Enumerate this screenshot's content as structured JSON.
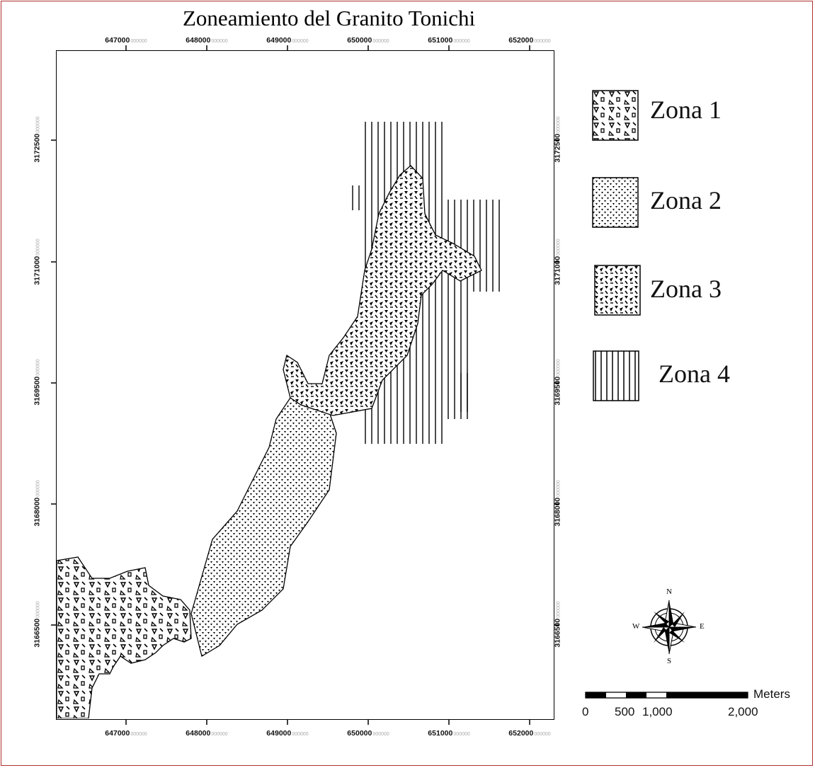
{
  "map": {
    "title": "Zoneamiento del Granito Tonichi",
    "x_ticks": [
      {
        "label": "647000",
        "suffix": "000000"
      },
      {
        "label": "648000",
        "suffix": "000000"
      },
      {
        "label": "649000",
        "suffix": "000000"
      },
      {
        "label": "650000",
        "suffix": "000000"
      },
      {
        "label": "651000",
        "suffix": "000000"
      },
      {
        "label": "652000",
        "suffix": "000000"
      }
    ],
    "y_ticks": [
      {
        "label": "3172500",
        "suffix": "000000"
      },
      {
        "label": "3171000",
        "suffix": "000000"
      },
      {
        "label": "3169500",
        "suffix": "000000"
      },
      {
        "label": "3168000",
        "suffix": "000000"
      },
      {
        "label": "3166500",
        "suffix": "000000"
      }
    ]
  },
  "legend": {
    "items": [
      {
        "label": "Zona 1",
        "pattern": "triangles-sparse"
      },
      {
        "label": "Zona 2",
        "pattern": "dots-dense"
      },
      {
        "label": "Zona 3",
        "pattern": "triangles-dense"
      },
      {
        "label": "Zona 4",
        "pattern": "vertical-lines"
      }
    ]
  },
  "north_arrow": {
    "n": "N",
    "s": "S",
    "e": "E",
    "w": "W"
  },
  "scale_bar": {
    "unit": "Meters",
    "labels": [
      "0",
      "500",
      "1,000",
      "2,000"
    ]
  }
}
